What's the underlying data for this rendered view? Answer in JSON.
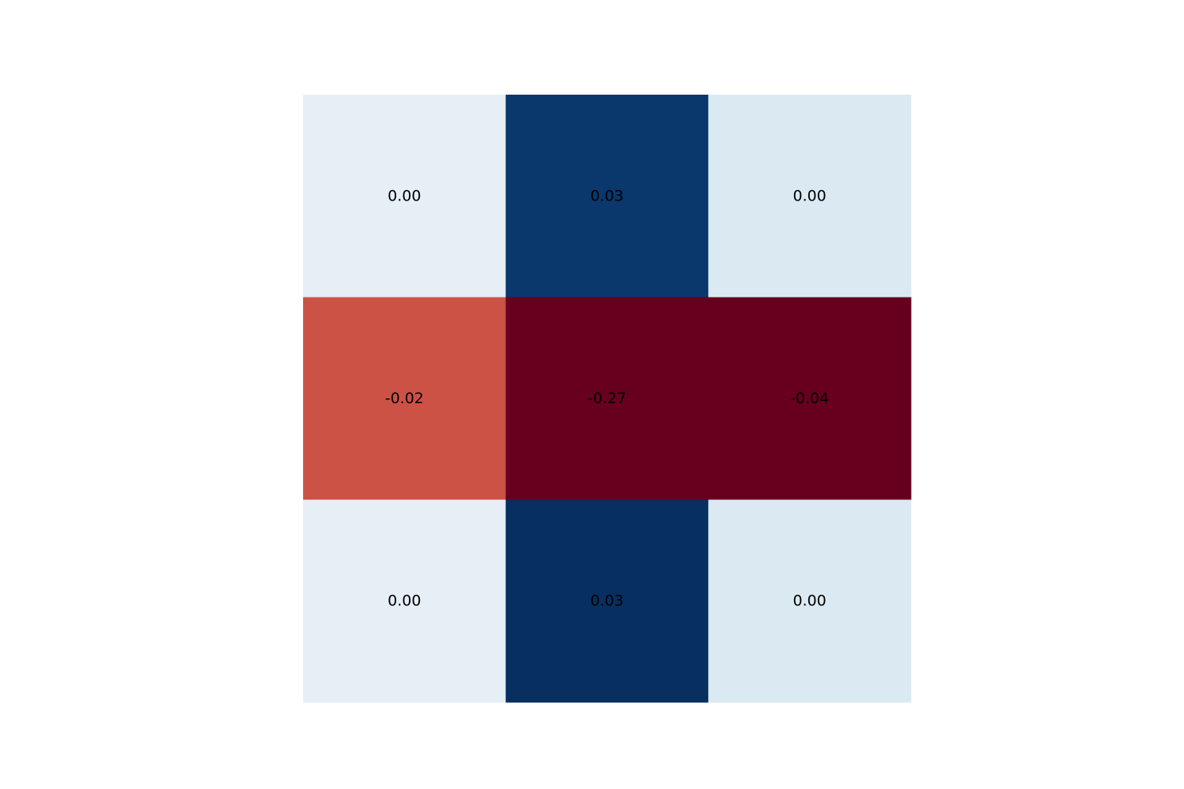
{
  "chart_data": {
    "type": "heatmap",
    "title": "",
    "xlabel": "",
    "ylabel": "",
    "grid": false,
    "legend": "none",
    "rows": 3,
    "cols": 3,
    "values": [
      [
        0.0,
        0.03,
        0.0
      ],
      [
        -0.02,
        -0.27,
        -0.04
      ],
      [
        0.0,
        0.03,
        0.0
      ]
    ],
    "labels": [
      [
        "0.00",
        "0.03",
        "0.00"
      ],
      [
        "-0.02",
        "-0.27",
        "-0.04"
      ],
      [
        "0.00",
        "0.03",
        "0.00"
      ]
    ],
    "colors": [
      [
        "#e6eef6",
        "#0a376c",
        "#dbeaf2"
      ],
      [
        "#cc5246",
        "#67001f",
        "#67001f"
      ],
      [
        "#e6eef6",
        "#072f60",
        "#dbeaf2"
      ]
    ]
  }
}
